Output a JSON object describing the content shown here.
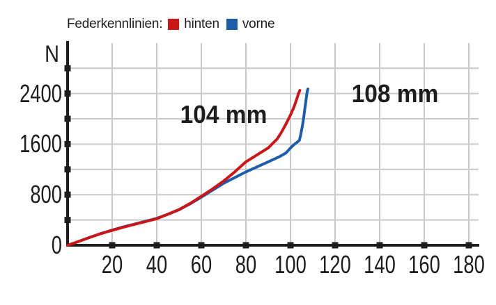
{
  "legend": {
    "title": "Federkennlinien:",
    "items": [
      {
        "label": "hinten",
        "color": "#cb1517"
      },
      {
        "label": "vorne",
        "color": "#1d5ca9"
      }
    ]
  },
  "chart_data": {
    "type": "line",
    "title": "Federkennlinien",
    "xlabel": "",
    "ylabel": "N",
    "xlim": [
      0,
      185
    ],
    "ylim": [
      0,
      2800
    ],
    "grid": true,
    "legend_position": "top-left",
    "x_ticks": [
      20,
      40,
      60,
      80,
      100,
      120,
      140,
      160,
      180
    ],
    "x_tick_labels": [
      "20",
      "40",
      "60",
      "80",
      "100",
      "120",
      "140",
      "160",
      "180"
    ],
    "y_grid_ticks": [
      400,
      800,
      1200,
      1600,
      2000,
      2400,
      2800
    ],
    "y_axis_labels": [
      {
        "value": 0,
        "label": "0"
      },
      {
        "value": 800,
        "label": "800"
      },
      {
        "value": 1600,
        "label": "1600"
      },
      {
        "value": 2400,
        "label": "2400"
      }
    ],
    "style": {
      "axis_color": "#1d1d1b",
      "grid_color": "#c9c9c9",
      "background": "#ffffff"
    },
    "annotations": [
      {
        "text": "104 mm",
        "series": "hinten",
        "x": 70,
        "y": 2070
      },
      {
        "text": "108 mm",
        "series": "vorne",
        "x": 147,
        "y": 2400
      }
    ],
    "series": [
      {
        "name": "vorne",
        "color": "#1d5ca9",
        "points": [
          [
            0,
            0
          ],
          [
            5,
            60
          ],
          [
            10,
            125
          ],
          [
            15,
            185
          ],
          [
            20,
            240
          ],
          [
            25,
            290
          ],
          [
            30,
            335
          ],
          [
            35,
            380
          ],
          [
            40,
            425
          ],
          [
            45,
            490
          ],
          [
            50,
            560
          ],
          [
            55,
            655
          ],
          [
            60,
            760
          ],
          [
            65,
            870
          ],
          [
            70,
            980
          ],
          [
            75,
            1070
          ],
          [
            80,
            1160
          ],
          [
            85,
            1240
          ],
          [
            90,
            1320
          ],
          [
            95,
            1400
          ],
          [
            98,
            1460
          ],
          [
            100,
            1540
          ],
          [
            101.5,
            1590
          ],
          [
            103,
            1630
          ],
          [
            104,
            1660
          ],
          [
            104.6,
            1750
          ],
          [
            105.4,
            1900
          ],
          [
            106,
            2040
          ],
          [
            106.6,
            2200
          ],
          [
            107.1,
            2330
          ],
          [
            107.5,
            2430
          ],
          [
            107.8,
            2470
          ]
        ]
      },
      {
        "name": "hinten",
        "color": "#cb1517",
        "points": [
          [
            0,
            0
          ],
          [
            5,
            60
          ],
          [
            10,
            125
          ],
          [
            15,
            185
          ],
          [
            20,
            235
          ],
          [
            25,
            285
          ],
          [
            30,
            330
          ],
          [
            35,
            375
          ],
          [
            40,
            420
          ],
          [
            45,
            490
          ],
          [
            50,
            565
          ],
          [
            55,
            662
          ],
          [
            60,
            775
          ],
          [
            65,
            890
          ],
          [
            70,
            1015
          ],
          [
            75,
            1160
          ],
          [
            80,
            1320
          ],
          [
            85,
            1430
          ],
          [
            90,
            1540
          ],
          [
            94,
            1680
          ],
          [
            96,
            1790
          ],
          [
            98,
            1920
          ],
          [
            100,
            2060
          ],
          [
            101.5,
            2180
          ],
          [
            102.7,
            2300
          ],
          [
            103.6,
            2400
          ],
          [
            104.2,
            2450
          ]
        ]
      }
    ]
  }
}
